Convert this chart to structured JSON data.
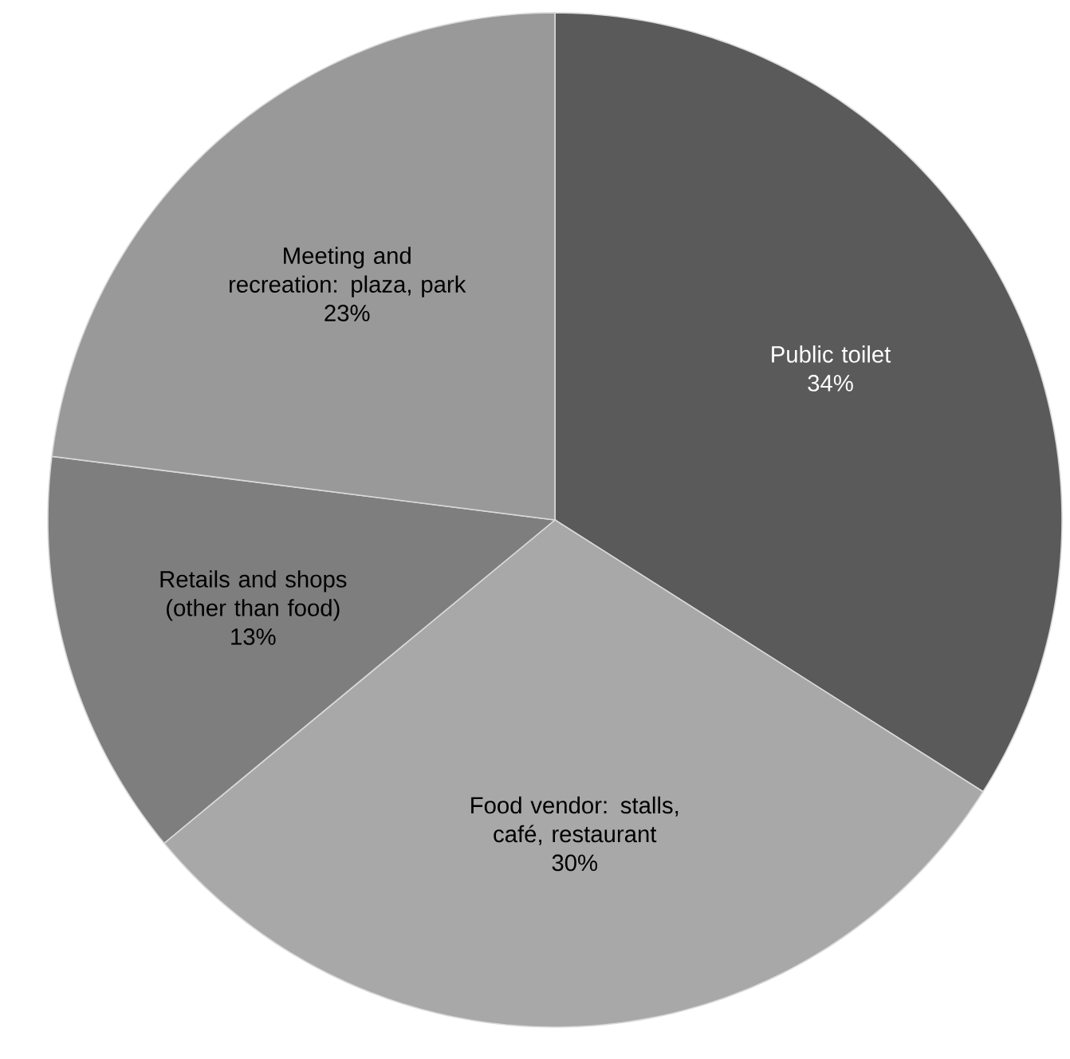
{
  "chart_data": {
    "type": "pie",
    "categories": [
      "Public toilet",
      "Food vendor: stalls, café, restaurant",
      "Retails and shops (other than food)",
      "Meeting and recreation: plaza, park"
    ],
    "values": [
      34,
      30,
      13,
      23
    ],
    "value_labels": [
      "34%",
      "30%",
      "13%",
      "23%"
    ],
    "colors": [
      "#5a5a5a",
      "#a8a8a8",
      "#7e7e7e",
      "#999999"
    ]
  }
}
